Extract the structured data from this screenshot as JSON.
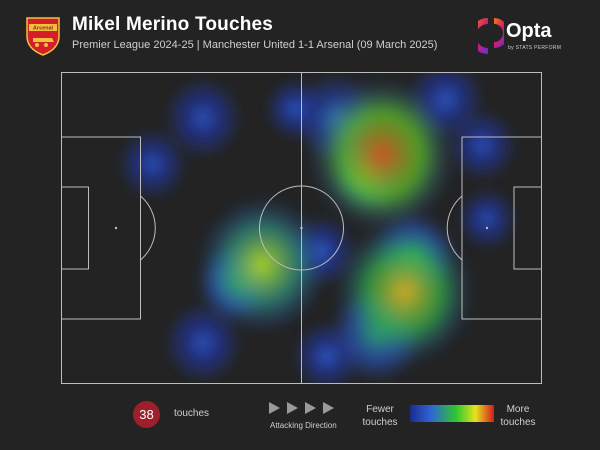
{
  "header": {
    "title": "Mikel Merino Touches",
    "subtitle": "Premier League 2024-25 | Manchester United 1-1 Arsenal (09 March 2025)",
    "club_crest_text": "Arsenal"
  },
  "brand": {
    "logo_text": "Opta",
    "logo_subtext": "by STATS PERFORM"
  },
  "stats": {
    "touches_count": "38",
    "touches_label": "touches"
  },
  "legend": {
    "direction_label": "Attacking Direction",
    "fewer_line1": "Fewer",
    "fewer_line2": "touches",
    "more_line1": "More",
    "more_line2": "touches"
  },
  "colors": {
    "background": "#232323",
    "pitch_lines": "#bdbdbd",
    "badge": "#9d1f2b",
    "heat_low": "#2a3ec8",
    "heat_mid": "#2ec82e",
    "heat_high": "#d31b1b"
  },
  "heatmap": {
    "pitch_length": 105,
    "pitch_width": 68,
    "zones": [
      {
        "x": 44,
        "y": 42,
        "r": 14,
        "level": 0.75
      },
      {
        "x": 38,
        "y": 46,
        "r": 8,
        "level": 0.55
      },
      {
        "x": 70,
        "y": 18,
        "r": 16,
        "level": 0.95
      },
      {
        "x": 67,
        "y": 22,
        "r": 8,
        "level": 0.7
      },
      {
        "x": 75,
        "y": 48,
        "r": 15,
        "level": 0.85
      },
      {
        "x": 69,
        "y": 57,
        "r": 10,
        "level": 0.5
      },
      {
        "x": 77,
        "y": 40,
        "r": 9,
        "level": 0.5
      },
      {
        "x": 60,
        "y": 10,
        "r": 9,
        "level": 0.35
      },
      {
        "x": 84,
        "y": 6,
        "r": 8,
        "level": 0.28
      },
      {
        "x": 92,
        "y": 16,
        "r": 7,
        "level": 0.25
      },
      {
        "x": 93,
        "y": 32,
        "r": 6,
        "level": 0.25
      },
      {
        "x": 31,
        "y": 10,
        "r": 8,
        "level": 0.25
      },
      {
        "x": 20,
        "y": 20,
        "r": 7,
        "level": 0.25
      },
      {
        "x": 31,
        "y": 59,
        "r": 8,
        "level": 0.25
      },
      {
        "x": 57,
        "y": 39,
        "r": 7,
        "level": 0.3
      },
      {
        "x": 58,
        "y": 62,
        "r": 7,
        "level": 0.3
      },
      {
        "x": 51,
        "y": 8,
        "r": 6,
        "level": 0.3
      }
    ]
  }
}
